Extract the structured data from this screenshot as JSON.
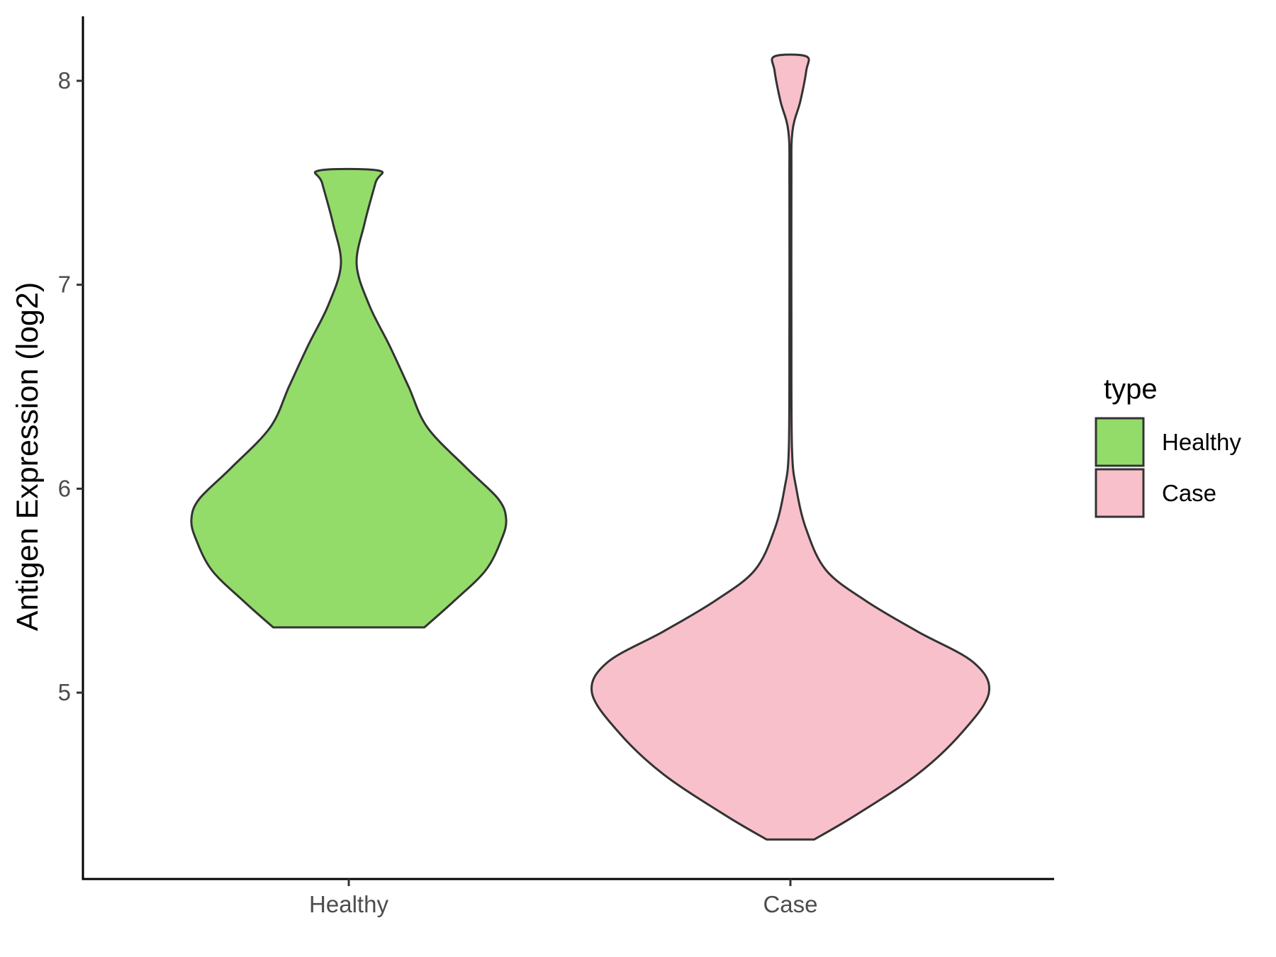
{
  "chart_data": {
    "type": "violin",
    "ylabel": "Antigen Expression (log2)",
    "xlabel": "",
    "categories": [
      "Healthy",
      "Case"
    ],
    "y_ticks": [
      "5",
      "6",
      "7",
      "8"
    ],
    "ylim": [
      4.1,
      8.3
    ],
    "grid": false,
    "legend": {
      "title": "type",
      "position": "right",
      "entries": [
        "Healthy",
        "Case"
      ]
    },
    "series": [
      {
        "name": "Healthy",
        "color": "#93dc6a",
        "y_min": 5.32,
        "y_max": 7.56,
        "density_profile": [
          {
            "y": 5.32,
            "w": 0.48
          },
          {
            "y": 5.45,
            "w": 0.67
          },
          {
            "y": 5.6,
            "w": 0.87
          },
          {
            "y": 5.75,
            "w": 0.97
          },
          {
            "y": 5.85,
            "w": 1.0
          },
          {
            "y": 5.95,
            "w": 0.95
          },
          {
            "y": 6.1,
            "w": 0.75
          },
          {
            "y": 6.3,
            "w": 0.5
          },
          {
            "y": 6.5,
            "w": 0.38
          },
          {
            "y": 6.7,
            "w": 0.26
          },
          {
            "y": 6.9,
            "w": 0.13
          },
          {
            "y": 7.1,
            "w": 0.05
          },
          {
            "y": 7.3,
            "w": 0.1
          },
          {
            "y": 7.5,
            "w": 0.17
          },
          {
            "y": 7.56,
            "w": 0.19
          }
        ]
      },
      {
        "name": "Case",
        "color": "#f8c0cb",
        "y_min": 4.28,
        "y_max": 8.12,
        "density_profile": [
          {
            "y": 4.28,
            "w": 0.12
          },
          {
            "y": 4.4,
            "w": 0.33
          },
          {
            "y": 4.6,
            "w": 0.64
          },
          {
            "y": 4.8,
            "w": 0.86
          },
          {
            "y": 5.0,
            "w": 1.0
          },
          {
            "y": 5.15,
            "w": 0.92
          },
          {
            "y": 5.3,
            "w": 0.64
          },
          {
            "y": 5.45,
            "w": 0.38
          },
          {
            "y": 5.6,
            "w": 0.18
          },
          {
            "y": 5.8,
            "w": 0.08
          },
          {
            "y": 6.0,
            "w": 0.03
          },
          {
            "y": 6.2,
            "w": 0.008
          },
          {
            "y": 6.8,
            "w": 0.005
          },
          {
            "y": 7.5,
            "w": 0.005
          },
          {
            "y": 7.75,
            "w": 0.01
          },
          {
            "y": 7.9,
            "w": 0.05
          },
          {
            "y": 8.05,
            "w": 0.08
          },
          {
            "y": 8.12,
            "w": 0.08
          }
        ]
      }
    ]
  }
}
